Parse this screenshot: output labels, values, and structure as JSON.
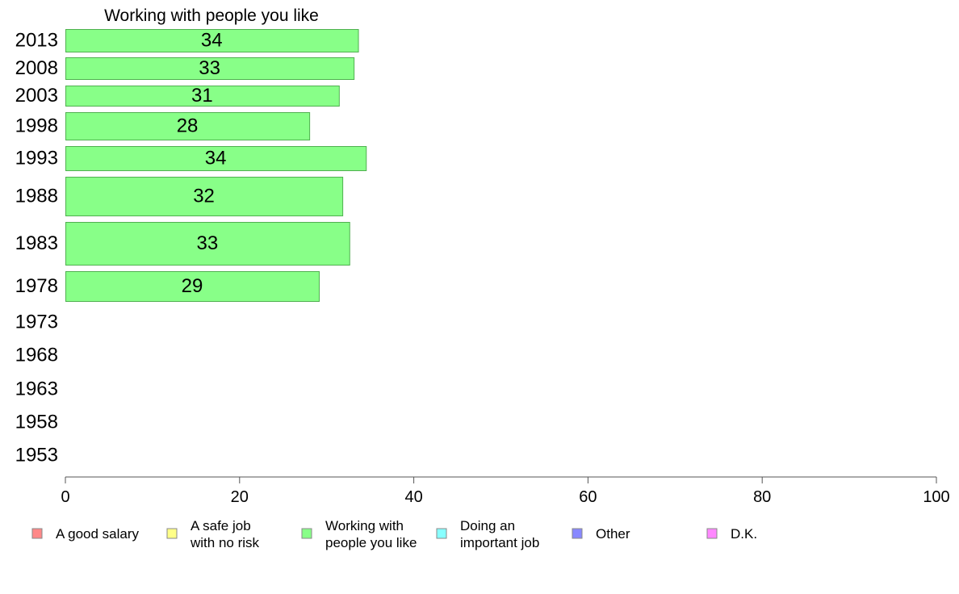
{
  "chart_data": {
    "type": "bar",
    "title": "Working with people you like",
    "orientation": "horizontal",
    "categories": [
      "2013",
      "2008",
      "2003",
      "1998",
      "1993",
      "1988",
      "1983",
      "1978",
      "1973",
      "1968",
      "1963",
      "1958",
      "1953"
    ],
    "series": [
      {
        "name": "Working with people you like",
        "color": "#88ff88",
        "values": [
          33.6,
          33.1,
          31.4,
          28.0,
          34.5,
          31.8,
          32.6,
          29.1,
          null,
          null,
          null,
          null,
          null
        ],
        "labels": [
          "34",
          "33",
          "31",
          "28",
          "34",
          "32",
          "33",
          "29",
          null,
          null,
          null,
          null,
          null
        ]
      }
    ],
    "xlim": [
      0,
      100
    ],
    "xticks": [
      0,
      20,
      40,
      60,
      80,
      100
    ],
    "xlabel": "",
    "ylabel": "",
    "grid": false,
    "legend_position": "bottom",
    "legend": [
      {
        "lines": [
          "A good salary"
        ],
        "color": "#ff8888"
      },
      {
        "lines": [
          "A safe job",
          "with no risk"
        ],
        "color": "#ffff88"
      },
      {
        "lines": [
          "Working with",
          "people you like"
        ],
        "color": "#88ff88"
      },
      {
        "lines": [
          "Doing an",
          "important job"
        ],
        "color": "#88ffff"
      },
      {
        "lines": [
          "Other"
        ],
        "color": "#8888ff"
      },
      {
        "lines": [
          "D.K."
        ],
        "color": "#ff88ff"
      }
    ]
  }
}
